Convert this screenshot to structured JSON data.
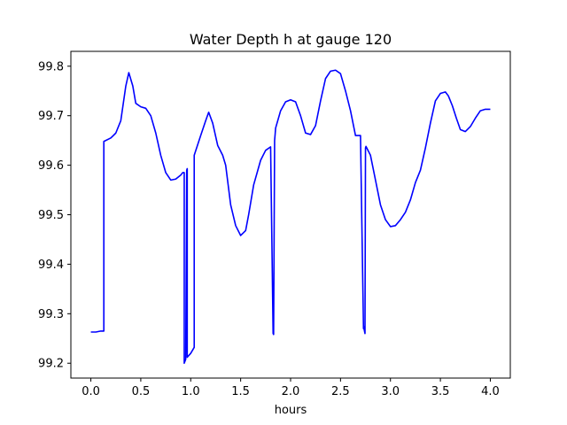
{
  "chart_data": {
    "type": "line",
    "title": "Water Depth h at gauge 120",
    "xlabel": "hours",
    "ylabel": "",
    "xlim": [
      -0.2,
      4.2
    ],
    "ylim": [
      99.17,
      99.83
    ],
    "xticks": [
      0.0,
      0.5,
      1.0,
      1.5,
      2.0,
      2.5,
      3.0,
      3.5,
      4.0
    ],
    "xtick_labels": [
      "0.0",
      "0.5",
      "1.0",
      "1.5",
      "2.0",
      "2.5",
      "3.0",
      "3.5",
      "4.0"
    ],
    "yticks": [
      99.2,
      99.3,
      99.4,
      99.5,
      99.6,
      99.7,
      99.8
    ],
    "ytick_labels": [
      "99.2",
      "99.3",
      "99.4",
      "99.5",
      "99.6",
      "99.7",
      "99.8"
    ],
    "grid": false,
    "series": [
      {
        "color": "#0000ff",
        "x": [
          0.0,
          0.05,
          0.1,
          0.13,
          0.13,
          0.2,
          0.25,
          0.3,
          0.35,
          0.38,
          0.42,
          0.45,
          0.5,
          0.55,
          0.6,
          0.65,
          0.7,
          0.75,
          0.8,
          0.85,
          0.9,
          0.92,
          0.935,
          0.935,
          0.95,
          0.96,
          0.965,
          0.965,
          1.0,
          1.035,
          1.035,
          1.1,
          1.15,
          1.18,
          1.22,
          1.27,
          1.32,
          1.35,
          1.4,
          1.45,
          1.5,
          1.55,
          1.58,
          1.63,
          1.7,
          1.75,
          1.8,
          1.825,
          1.83,
          1.84,
          1.845,
          1.85,
          1.9,
          1.95,
          2.0,
          2.05,
          2.1,
          2.15,
          2.2,
          2.25,
          2.3,
          2.35,
          2.4,
          2.45,
          2.5,
          2.55,
          2.6,
          2.65,
          2.7,
          2.73,
          2.73,
          2.745,
          2.75,
          2.755,
          2.8,
          2.85,
          2.9,
          2.95,
          3.0,
          3.05,
          3.1,
          3.15,
          3.2,
          3.25,
          3.3,
          3.35,
          3.4,
          3.45,
          3.5,
          3.55,
          3.58,
          3.62,
          3.66,
          3.7,
          3.75,
          3.8,
          3.85,
          3.9,
          3.95,
          4.0
        ],
        "y": [
          99.263,
          99.263,
          99.265,
          99.265,
          99.648,
          99.655,
          99.665,
          99.69,
          99.76,
          99.787,
          99.76,
          99.725,
          99.718,
          99.715,
          99.7,
          99.665,
          99.62,
          99.585,
          99.57,
          99.572,
          99.58,
          99.585,
          99.585,
          99.2,
          99.208,
          99.59,
          99.593,
          99.212,
          99.22,
          99.232,
          99.62,
          99.66,
          99.69,
          99.707,
          99.685,
          99.64,
          99.62,
          99.6,
          99.52,
          99.478,
          99.458,
          99.468,
          99.5,
          99.56,
          99.61,
          99.63,
          99.637,
          99.26,
          99.258,
          99.65,
          99.662,
          99.675,
          99.71,
          99.728,
          99.732,
          99.728,
          99.7,
          99.665,
          99.662,
          99.68,
          99.73,
          99.775,
          99.79,
          99.792,
          99.785,
          99.75,
          99.71,
          99.66,
          99.66,
          99.27,
          99.275,
          99.26,
          99.635,
          99.638,
          99.62,
          99.57,
          99.52,
          99.49,
          99.476,
          99.478,
          99.49,
          99.505,
          99.53,
          99.565,
          99.59,
          99.635,
          99.685,
          99.73,
          99.745,
          99.748,
          99.74,
          99.72,
          99.695,
          99.672,
          99.668,
          99.678,
          99.695,
          99.71,
          99.713,
          99.713
        ]
      }
    ]
  }
}
